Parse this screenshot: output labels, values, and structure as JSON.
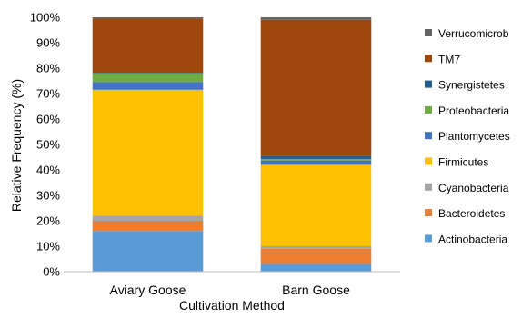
{
  "chart_data": {
    "type": "bar",
    "stacked": true,
    "categories": [
      "Aviary Goose",
      "Barn Goose"
    ],
    "xlabel": "Cultivation Method",
    "ylabel": "Relative Frequency (%)",
    "ylim": [
      0,
      100
    ],
    "yticks": [
      "0%",
      "10%",
      "20%",
      "30%",
      "40%",
      "50%",
      "60%",
      "70%",
      "80%",
      "90%",
      "100%"
    ],
    "grid": false,
    "legend_position": "right",
    "series": [
      {
        "name": "Actinobacteria",
        "color": "#5b9bd5",
        "values": [
          16,
          3
        ]
      },
      {
        "name": "Bacteroidetes",
        "color": "#ed7d31",
        "values": [
          4,
          6
        ]
      },
      {
        "name": "Cyanobacteria",
        "color": "#a5a5a5",
        "values": [
          2,
          1
        ]
      },
      {
        "name": "Firmicutes",
        "color": "#ffc000",
        "values": [
          49.5,
          32
        ]
      },
      {
        "name": "Plantomycetes",
        "color": "#4472c4",
        "values": [
          3,
          1.7
        ]
      },
      {
        "name": "Proteobacteria",
        "color": "#70ad47",
        "values": [
          3.5,
          0.6
        ]
      },
      {
        "name": "Synergistetes",
        "color": "#255e91",
        "values": [
          0.2,
          1.2
        ]
      },
      {
        "name": "TM7",
        "color": "#9e480e",
        "values": [
          21.3,
          53.5
        ]
      },
      {
        "name": "Verrucomicrob",
        "color": "#636363",
        "values": [
          0.5,
          1
        ]
      }
    ]
  }
}
